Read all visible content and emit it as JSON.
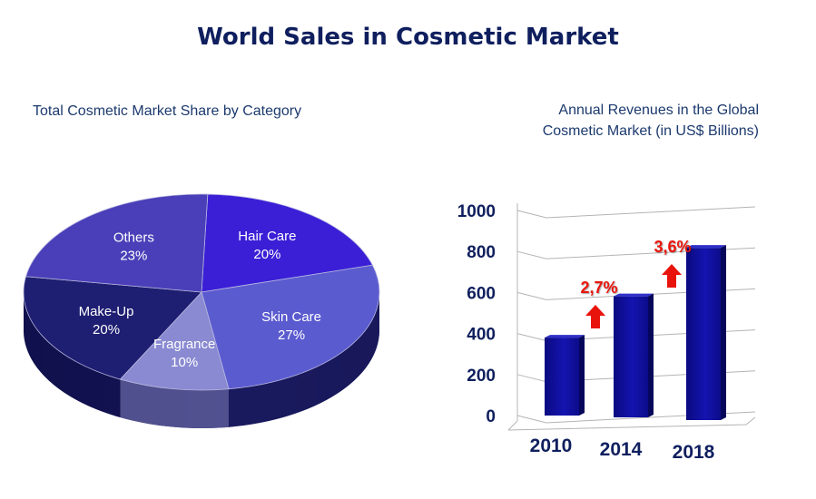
{
  "title": "World Sales in Cosmetic Market",
  "chart_data": [
    {
      "type": "pie",
      "title": "Total Cosmetic Market Share by Category",
      "slices": [
        {
          "label": "Hair Care",
          "value": 20,
          "value_label": "20%",
          "color": "#3a1fd6"
        },
        {
          "label": "Skin Care",
          "value": 27,
          "value_label": "27%",
          "color": "#5b5bd0"
        },
        {
          "label": "Fragrance",
          "value": 10,
          "value_label": "10%",
          "color": "#8a8ad2"
        },
        {
          "label": "Make-Up",
          "value": 20,
          "value_label": "20%",
          "color": "#1e1e72"
        },
        {
          "label": "Others",
          "value": 23,
          "value_label": "23%",
          "color": "#4a3fb8"
        }
      ]
    },
    {
      "type": "bar",
      "title_lines": [
        "Annual Revenues in the Global",
        "Cosmetic Market (in US$ Billions)"
      ],
      "categories": [
        "2010",
        "2014",
        "2018"
      ],
      "values": [
        380,
        590,
        840
      ],
      "ylim": [
        0,
        1000
      ],
      "yticks": [
        "0",
        "200",
        "400",
        "600",
        "800",
        "1000"
      ],
      "grid": true,
      "bar_color": "#12129e",
      "annotations": [
        {
          "text": "2,7%",
          "between": [
            "2010",
            "2014"
          ],
          "color": "#e8140c"
        },
        {
          "text": "3,6%",
          "between": [
            "2014",
            "2018"
          ],
          "color": "#e8140c"
        }
      ]
    }
  ]
}
